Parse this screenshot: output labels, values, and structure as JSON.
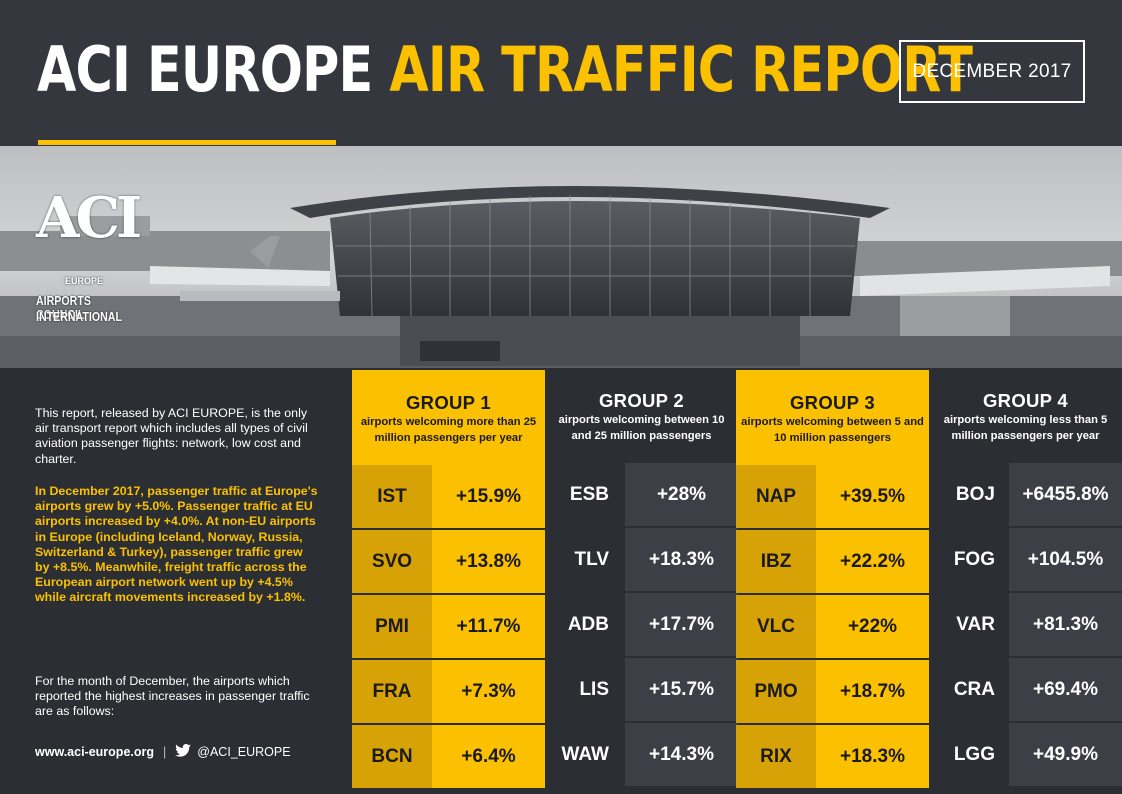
{
  "header": {
    "title_part1": "ACI EUROPE",
    "title_part2": "AIR TRAFFIC REPORT",
    "date": "DECEMBER 2017",
    "accent_color": "#fbc100"
  },
  "logo": {
    "mark": "ACI",
    "region": "EUROPE",
    "line1": "AIRPORTS COUNCIL",
    "line2": "INTERNATIONAL"
  },
  "intro": {
    "p1": "This report, released by ACI EUROPE, is the only air transport report which includes all types of civil aviation passenger flights: network, low cost and charter.",
    "p2": "In December 2017, passenger traffic at Europe's airports grew by +5.0%. Passenger traffic at EU airports increased by +4.0%. At non-EU airports in Europe (including Iceland, Norway, Russia, Switzerland & Turkey), passenger traffic grew by +8.5%. Meanwhile, freight traffic across the European airport network went up by +4.5% while aircraft movements increased by +1.8%.",
    "p3": "For the month of December, the airports which reported the highest increases in passenger traffic are as follows:"
  },
  "footer": {
    "website": "www.aci-europe.org",
    "separator": "|",
    "twitter_icon": "twitter-bird-icon",
    "twitter_handle": "@ACI_EUROPE"
  },
  "groups": [
    {
      "title": "GROUP 1",
      "subtitle": "airports welcoming more than 25 million passengers per year",
      "rows": [
        {
          "code": "IST",
          "value": "+15.9%"
        },
        {
          "code": "SVO",
          "value": "+13.8%"
        },
        {
          "code": "PMI",
          "value": "+11.7%"
        },
        {
          "code": "FRA",
          "value": "+7.3%"
        },
        {
          "code": "BCN",
          "value": "+6.4%"
        }
      ]
    },
    {
      "title": "GROUP 2",
      "subtitle": "airports welcoming between 10 and 25 million passengers",
      "rows": [
        {
          "code": "ESB",
          "value": "+28%"
        },
        {
          "code": "TLV",
          "value": "+18.3%"
        },
        {
          "code": "ADB",
          "value": "+17.7%"
        },
        {
          "code": "LIS",
          "value": "+15.7%"
        },
        {
          "code": "WAW",
          "value": "+14.3%"
        }
      ]
    },
    {
      "title": "GROUP 3",
      "subtitle": "airports welcoming between 5 and 10 million passengers",
      "rows": [
        {
          "code": "NAP",
          "value": "+39.5%"
        },
        {
          "code": "IBZ",
          "value": "+22.2%"
        },
        {
          "code": "VLC",
          "value": "+22%"
        },
        {
          "code": "PMO",
          "value": "+18.7%"
        },
        {
          "code": "RIX",
          "value": "+18.3%"
        }
      ]
    },
    {
      "title": "GROUP 4",
      "subtitle": "airports welcoming less than 5 million passengers per year",
      "rows": [
        {
          "code": "BOJ",
          "value": "+6455.8%"
        },
        {
          "code": "FOG",
          "value": "+104.5%"
        },
        {
          "code": "VAR",
          "value": "+81.3%"
        },
        {
          "code": "CRA",
          "value": "+69.4%"
        },
        {
          "code": "LGG",
          "value": "+49.9%"
        }
      ]
    }
  ]
}
